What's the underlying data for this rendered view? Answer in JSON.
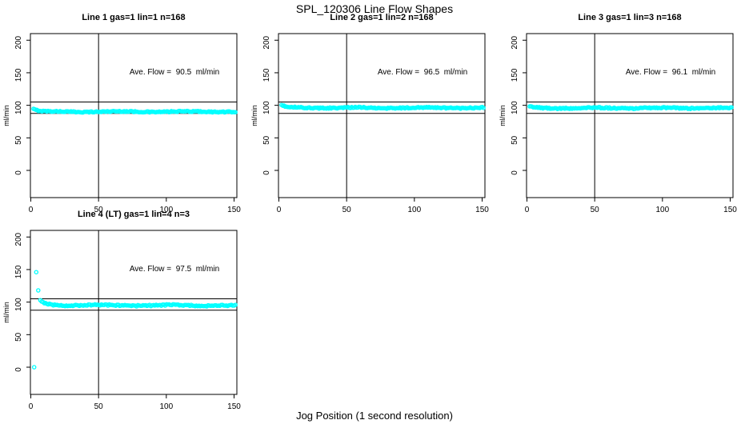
{
  "title": "SPL_120306  Line Flow Shapes",
  "xlabel": "Jog Position (1 second resolution)",
  "colors": {
    "points": "#00FFFF",
    "axis": "#000000",
    "background": "#ffffff"
  },
  "chart_data": [
    {
      "type": "scatter",
      "title": "Line 1 gas=1 lin=1 n=168",
      "annotation": "Ave. Flow =  90.5  ml/min",
      "ave_flow": 90.5,
      "n": 168,
      "ylabel": "ml/min",
      "x_ticks": [
        0,
        50,
        100,
        150
      ],
      "y_ticks": [
        0,
        50,
        100,
        150,
        200
      ],
      "xlim": [
        0,
        155
      ],
      "ylim": [
        -40,
        210
      ],
      "ref_vline_x": 50,
      "ref_hlines": [
        105,
        87.5
      ],
      "band": {
        "x_start": 2,
        "x_end": 151,
        "count": 168,
        "level": 90.2,
        "start_bump": 4,
        "decay": 4,
        "noise": 0.8,
        "wobble": 0.5
      },
      "outliers": []
    },
    {
      "type": "scatter",
      "title": "Line 2 gas=1 lin=2 n=168",
      "annotation": "Ave. Flow =  96.5  ml/min",
      "ave_flow": 96.5,
      "n": 168,
      "ylabel": "ml/min",
      "x_ticks": [
        0,
        50,
        100,
        150
      ],
      "y_ticks": [
        0,
        50,
        100,
        150,
        200
      ],
      "xlim": [
        0,
        155
      ],
      "ylim": [
        -40,
        210
      ],
      "ref_vline_x": 50,
      "ref_hlines": [
        105,
        87.5
      ],
      "band": {
        "x_start": 2,
        "x_end": 151,
        "count": 168,
        "level": 96.2,
        "start_bump": 3,
        "decay": 5,
        "noise": 0.9,
        "wobble": 0.6
      },
      "outliers": []
    },
    {
      "type": "scatter",
      "title": "Line 3 gas=1 lin=3 n=168",
      "annotation": "Ave. Flow =  96.1  ml/min",
      "ave_flow": 96.1,
      "n": 168,
      "ylabel": "ml/min",
      "x_ticks": [
        0,
        50,
        100,
        150
      ],
      "y_ticks": [
        0,
        50,
        100,
        150,
        200
      ],
      "xlim": [
        0,
        155
      ],
      "ylim": [
        -40,
        210
      ],
      "ref_vline_x": 50,
      "ref_hlines": [
        105,
        87.5
      ],
      "band": {
        "x_start": 2,
        "x_end": 151,
        "count": 168,
        "level": 95.8,
        "start_bump": 2.5,
        "decay": 5,
        "noise": 0.9,
        "wobble": 0.6
      },
      "outliers": []
    },
    {
      "type": "scatter",
      "title": "Line 4 (LT) gas=1 lin=4 n=3",
      "annotation": "Ave. Flow =  97.5  ml/min",
      "ave_flow": 97.5,
      "n": 3,
      "ylabel": "ml/min",
      "x_ticks": [
        0,
        50,
        100,
        150
      ],
      "y_ticks": [
        0,
        50,
        100,
        150,
        200
      ],
      "xlim": [
        0,
        155
      ],
      "ylim": [
        -40,
        210
      ],
      "ref_vline_x": 50,
      "ref_hlines": [
        105,
        87.5
      ],
      "band": {
        "x_start": 8,
        "x_end": 151,
        "count": 150,
        "level": 95.0,
        "start_bump": 6,
        "decay": 6,
        "noise": 1.1,
        "wobble": 0.7
      },
      "outliers": [
        [
          2.5,
          0
        ],
        [
          4,
          146
        ],
        [
          5.5,
          118
        ],
        [
          7,
          103
        ]
      ]
    }
  ]
}
